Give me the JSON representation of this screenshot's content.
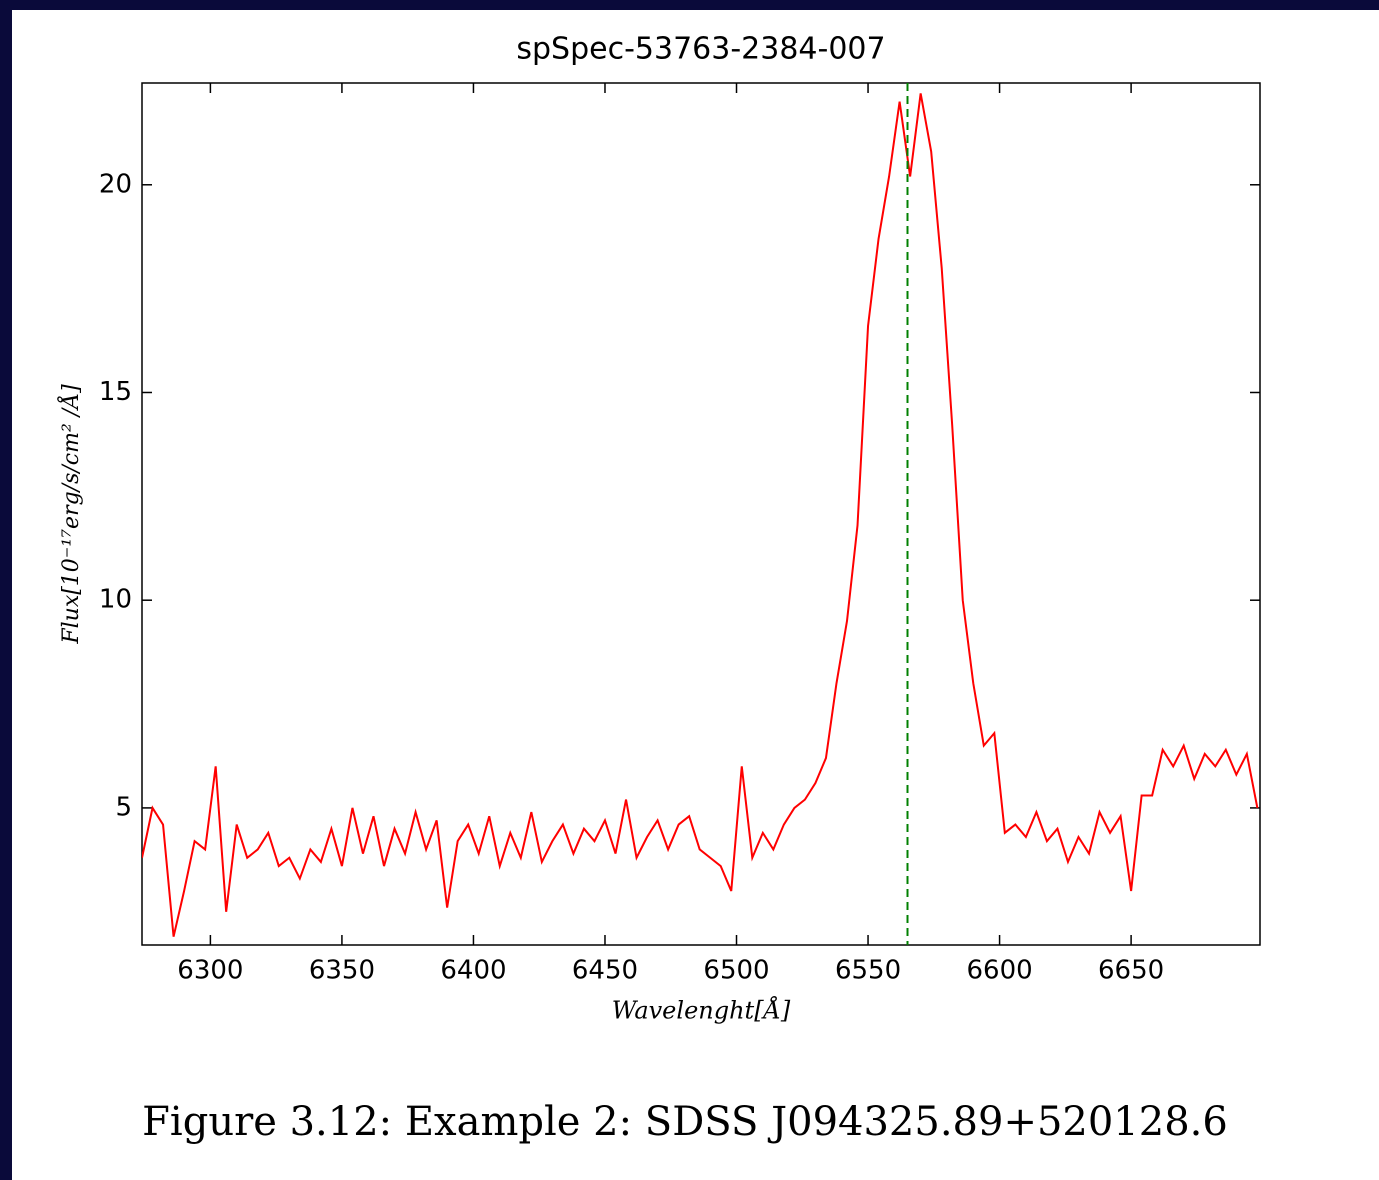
{
  "chart_data": {
    "type": "line",
    "title": "spSpec-53763-2384-007",
    "xlabel": "Wavelenght[Å]",
    "ylabel": "Flux[10⁻¹⁷erg/s/cm² /Å]",
    "caption": "Figure 3.12: Example 2: SDSS J094325.89+520128.6",
    "x": [
      6274,
      6278,
      6282,
      6286,
      6290,
      6294,
      6298,
      6302,
      6306,
      6310,
      6314,
      6318,
      6322,
      6326,
      6330,
      6334,
      6338,
      6342,
      6346,
      6350,
      6354,
      6358,
      6362,
      6366,
      6370,
      6374,
      6378,
      6382,
      6386,
      6390,
      6394,
      6398,
      6402,
      6406,
      6410,
      6414,
      6418,
      6422,
      6426,
      6430,
      6434,
      6438,
      6442,
      6446,
      6450,
      6454,
      6458,
      6462,
      6466,
      6470,
      6474,
      6478,
      6482,
      6486,
      6490,
      6494,
      6498,
      6502,
      6506,
      6510,
      6514,
      6518,
      6522,
      6526,
      6530,
      6534,
      6538,
      6542,
      6546,
      6550,
      6554,
      6558,
      6562,
      6566,
      6570,
      6574,
      6578,
      6582,
      6586,
      6590,
      6594,
      6598,
      6602,
      6606,
      6610,
      6614,
      6618,
      6622,
      6626,
      6630,
      6634,
      6638,
      6642,
      6646,
      6650,
      6654,
      6658,
      6662,
      6666,
      6670,
      6674,
      6678,
      6682,
      6686,
      6690,
      6694,
      6698
    ],
    "series": [
      {
        "color": "#ff0000",
        "values": [
          3.8,
          5.0,
          4.6,
          1.9,
          3.0,
          4.2,
          4.0,
          6.0,
          2.5,
          4.6,
          3.8,
          4.0,
          4.4,
          3.6,
          3.8,
          3.3,
          4.0,
          3.7,
          4.5,
          3.6,
          5.0,
          3.9,
          4.8,
          3.6,
          4.5,
          3.9,
          4.9,
          4.0,
          4.7,
          2.6,
          4.2,
          4.6,
          3.9,
          4.8,
          3.6,
          4.4,
          3.8,
          4.9,
          3.7,
          4.2,
          4.6,
          3.9,
          4.5,
          4.2,
          4.7,
          3.9,
          5.2,
          3.8,
          4.3,
          4.7,
          4.0,
          4.6,
          4.8,
          4.0,
          3.8,
          3.6,
          3.0,
          6.0,
          3.8,
          4.4,
          4.0,
          4.6,
          5.0,
          5.2,
          5.6,
          6.2,
          8.0,
          9.5,
          11.8,
          16.6,
          18.7,
          20.2,
          22.0,
          20.2,
          22.2,
          20.8,
          18.0,
          14.2,
          10.0,
          8.0,
          6.5,
          6.8,
          4.4,
          4.6,
          4.3,
          4.9,
          4.2,
          4.5,
          3.7,
          4.3,
          3.9,
          4.9,
          4.4,
          4.8,
          3.0,
          5.3,
          5.3,
          6.4,
          6.0,
          6.5,
          5.7,
          6.3,
          6.0,
          6.4,
          5.8,
          6.3,
          5.0
        ]
      }
    ],
    "vline": 6565,
    "vline_color": "#008000",
    "xlim": [
      6274,
      6699
    ],
    "xticks": [
      6300,
      6350,
      6400,
      6450,
      6500,
      6550,
      6600,
      6650
    ],
    "ylim": [
      1.7,
      22.45
    ],
    "yticks": [
      5,
      10,
      15,
      20
    ],
    "grid": false
  }
}
